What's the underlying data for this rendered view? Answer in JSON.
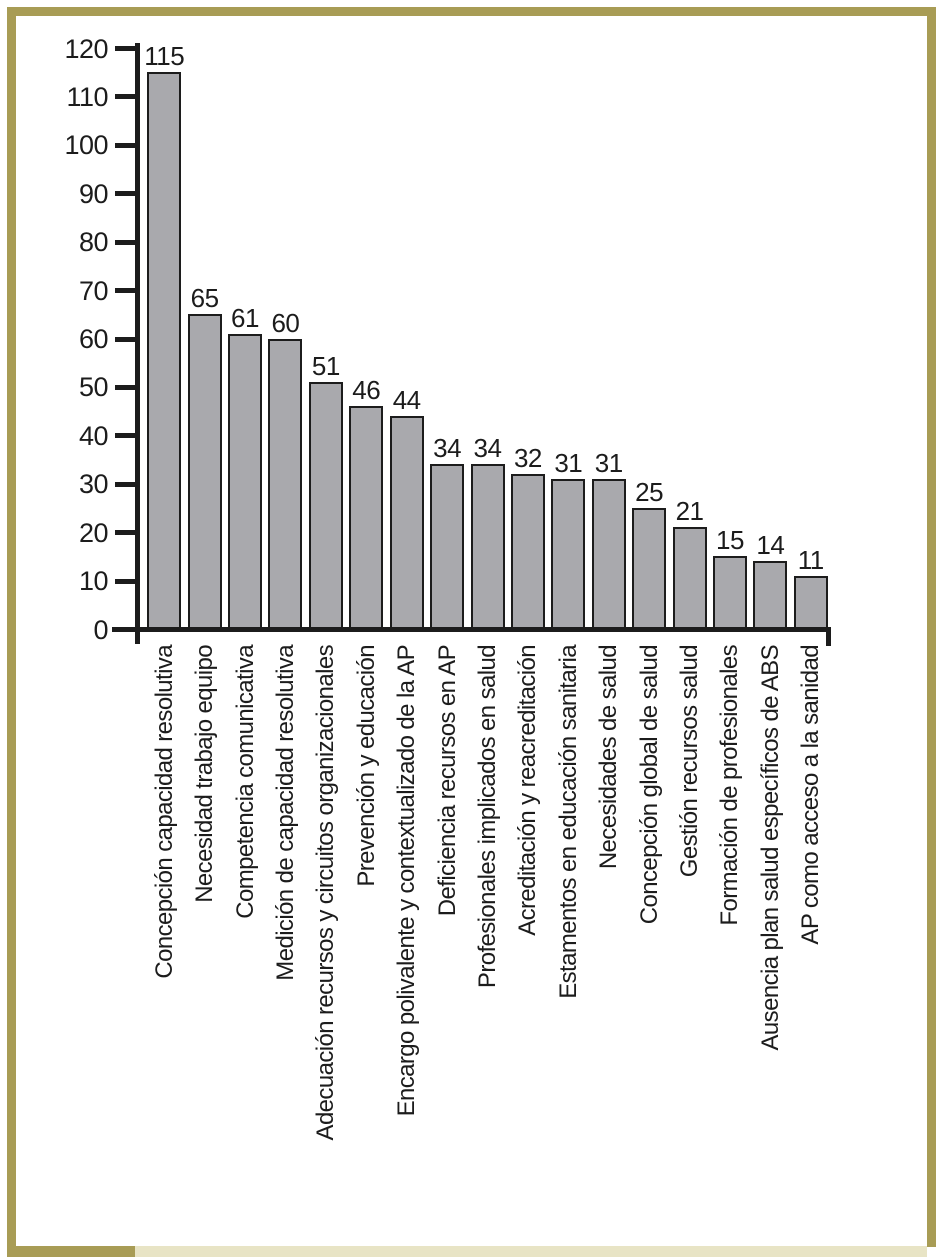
{
  "figure": {
    "frame_color": "#a89c55",
    "footer_band_color": "#e8e4c5",
    "background_color": "#ffffff"
  },
  "chart_data": {
    "type": "bar",
    "title": "",
    "xlabel": "",
    "ylabel": "",
    "categories": [
      "Concepción capacidad resolutiva",
      "Necesidad trabajo equipo",
      "Competencia comunicativa",
      "Medición de capacidad resolutiva",
      "Adecuación recursos y circuitos organizacionales",
      "Prevención y educación",
      "Encargo polivalente y contextualizado de la AP",
      "Deficiencia recursos en AP",
      "Profesionales implicados en salud",
      "Acreditación y reacreditación",
      "Estamentos en educación sanitaria",
      "Necesidades de salud",
      "Concepción global de salud",
      "Gestión recursos salud",
      "Formación de profesionales",
      "Ausencia plan salud específicos de ABS",
      "AP como acceso a la sanidad"
    ],
    "values": [
      115,
      65,
      61,
      60,
      51,
      46,
      44,
      34,
      34,
      32,
      31,
      31,
      25,
      21,
      15,
      14,
      11
    ],
    "value_labels_shown": true,
    "yticks": [
      0,
      10,
      20,
      30,
      40,
      50,
      60,
      70,
      80,
      90,
      100,
      110,
      120
    ],
    "ylim": [
      0,
      120
    ],
    "x_tick_rotation": 90,
    "grid": false,
    "legend": "none",
    "bar_color": "#a9a9ad",
    "bar_border_color": "#1c1c1c",
    "axis_color": "#1c1c1c",
    "text_color": "#1c1c1c"
  }
}
